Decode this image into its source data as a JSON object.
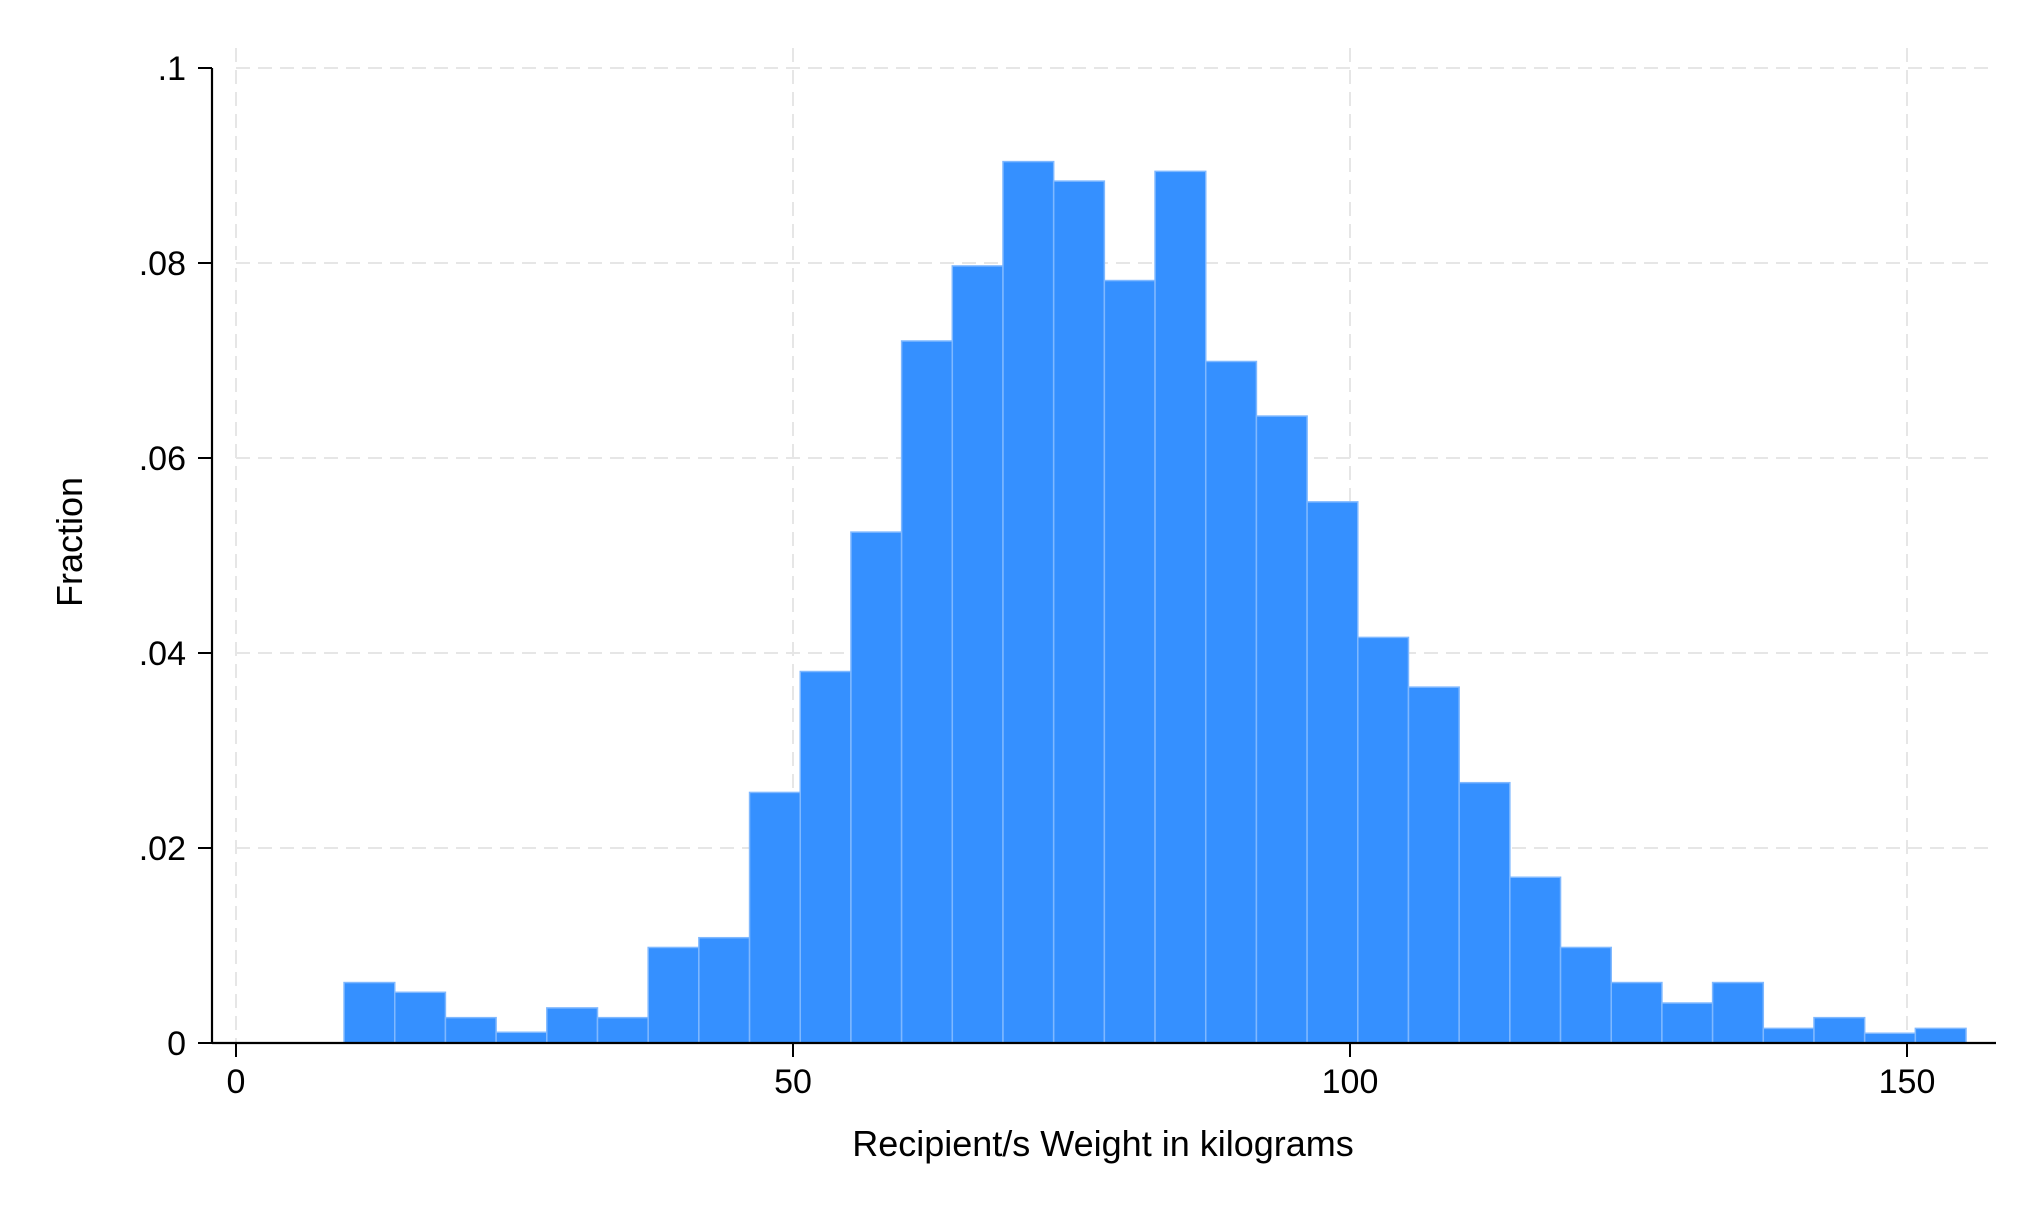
{
  "chart_data": {
    "type": "bar",
    "subtype": "histogram",
    "title": "",
    "xlabel": "Recipient/s Weight in kilograms",
    "ylabel": "Fraction",
    "xlim": [
      0,
      157
    ],
    "ylim": [
      0,
      0.1
    ],
    "x_ticks": [
      {
        "value": 0,
        "label": "0"
      },
      {
        "value": 50,
        "label": "50"
      },
      {
        "value": 100,
        "label": "100"
      },
      {
        "value": 150,
        "label": "150"
      }
    ],
    "y_ticks": [
      {
        "value": 0,
        "label": "0"
      },
      {
        "value": 0.02,
        "label": ".02"
      },
      {
        "value": 0.04,
        "label": ".04"
      },
      {
        "value": 0.06,
        "label": ".06"
      },
      {
        "value": 0.08,
        "label": ".08"
      },
      {
        "value": 0.1,
        "label": ".1"
      }
    ],
    "grid": true,
    "bar_color": "#3590FF",
    "bar_edge_color": "#7FB8FF",
    "grid_color": "#E6E6E6",
    "bin_width": 4.55,
    "bins": [
      {
        "x0": 9.7,
        "value": 0.0062
      },
      {
        "x0": 14.25,
        "value": 0.0052
      },
      {
        "x0": 18.8,
        "value": 0.0026
      },
      {
        "x0": 23.35,
        "value": 0.0011
      },
      {
        "x0": 27.9,
        "value": 0.0036
      },
      {
        "x0": 32.45,
        "value": 0.0026
      },
      {
        "x0": 37.0,
        "value": 0.0098
      },
      {
        "x0": 41.55,
        "value": 0.0108
      },
      {
        "x0": 46.1,
        "value": 0.0257
      },
      {
        "x0": 50.65,
        "value": 0.0381
      },
      {
        "x0": 55.2,
        "value": 0.0524
      },
      {
        "x0": 59.75,
        "value": 0.072
      },
      {
        "x0": 64.3,
        "value": 0.0797
      },
      {
        "x0": 68.85,
        "value": 0.0904
      },
      {
        "x0": 73.4,
        "value": 0.0884
      },
      {
        "x0": 77.95,
        "value": 0.0782
      },
      {
        "x0": 82.5,
        "value": 0.0894
      },
      {
        "x0": 87.05,
        "value": 0.0699
      },
      {
        "x0": 91.6,
        "value": 0.0643
      },
      {
        "x0": 96.15,
        "value": 0.0555
      },
      {
        "x0": 100.7,
        "value": 0.0416
      },
      {
        "x0": 105.25,
        "value": 0.0365
      },
      {
        "x0": 109.8,
        "value": 0.0267
      },
      {
        "x0": 114.35,
        "value": 0.017
      },
      {
        "x0": 118.9,
        "value": 0.0098
      },
      {
        "x0": 123.45,
        "value": 0.0062
      },
      {
        "x0": 128.0,
        "value": 0.0041
      },
      {
        "x0": 132.55,
        "value": 0.0062
      },
      {
        "x0": 137.1,
        "value": 0.0015
      },
      {
        "x0": 141.65,
        "value": 0.0026
      },
      {
        "x0": 146.2,
        "value": 0.001
      },
      {
        "x0": 150.75,
        "value": 0.0015
      }
    ]
  }
}
